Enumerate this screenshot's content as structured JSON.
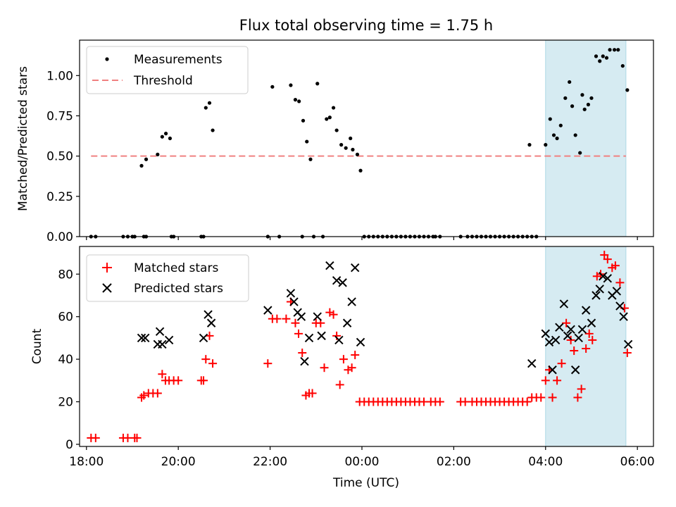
{
  "chart_data": [
    {
      "type": "scatter",
      "title": "Flux total observing time = 1.75 h",
      "ylabel": "Matched/Predicted stars",
      "xlabel": "",
      "xlim": [
        17.85,
        30.35
      ],
      "ylim": [
        0,
        1.22
      ],
      "x_ticks": [
        18,
        20,
        22,
        24,
        26,
        28,
        30
      ],
      "y_ticks": [
        0,
        0.25,
        0.5,
        0.75,
        1.0
      ],
      "y_tick_labels": [
        "0.00",
        "0.25",
        "0.50",
        "0.75",
        "1.00"
      ],
      "legend": {
        "placement": "top-left",
        "entries": [
          "Measurements",
          "Threshold"
        ]
      },
      "shaded_span": {
        "x": [
          28.0,
          29.75
        ],
        "color": "#add8e6"
      },
      "threshold": {
        "name": "Threshold",
        "y": 0.5,
        "x": [
          18.1,
          29.75
        ],
        "color": "#f08080"
      },
      "series": [
        {
          "name": "Measurements",
          "color": "#000000",
          "points": [
            [
              18.1,
              0
            ],
            [
              18.2,
              0
            ],
            [
              18.8,
              0
            ],
            [
              18.9,
              0
            ],
            [
              19.0,
              0
            ],
            [
              19.05,
              0
            ],
            [
              19.25,
              0
            ],
            [
              19.3,
              0
            ],
            [
              19.85,
              0
            ],
            [
              19.9,
              0
            ],
            [
              20.5,
              0
            ],
            [
              20.55,
              0
            ],
            [
              21.95,
              0
            ],
            [
              22.2,
              0
            ],
            [
              22.7,
              0
            ],
            [
              22.95,
              0
            ],
            [
              23.15,
              0
            ],
            [
              19.2,
              0.44
            ],
            [
              19.3,
              0.48
            ],
            [
              19.55,
              0.51
            ],
            [
              19.65,
              0.62
            ],
            [
              19.73,
              0.64
            ],
            [
              19.82,
              0.61
            ],
            [
              20.6,
              0.8
            ],
            [
              20.68,
              0.83
            ],
            [
              20.75,
              0.66
            ],
            [
              22.05,
              0.93
            ],
            [
              22.45,
              0.94
            ],
            [
              22.55,
              0.85
            ],
            [
              22.63,
              0.84
            ],
            [
              22.72,
              0.72
            ],
            [
              22.8,
              0.59
            ],
            [
              22.88,
              0.48
            ],
            [
              23.03,
              0.95
            ],
            [
              23.23,
              0.73
            ],
            [
              23.3,
              0.74
            ],
            [
              23.38,
              0.8
            ],
            [
              23.45,
              0.66
            ],
            [
              23.55,
              0.57
            ],
            [
              23.65,
              0.55
            ],
            [
              23.75,
              0.61
            ],
            [
              23.8,
              0.54
            ],
            [
              23.9,
              0.51
            ],
            [
              23.97,
              0.41
            ],
            [
              24.05,
              0
            ],
            [
              24.15,
              0
            ],
            [
              24.25,
              0
            ],
            [
              24.35,
              0
            ],
            [
              24.45,
              0
            ],
            [
              24.55,
              0
            ],
            [
              24.65,
              0
            ],
            [
              24.75,
              0
            ],
            [
              24.85,
              0
            ],
            [
              24.95,
              0
            ],
            [
              25.05,
              0
            ],
            [
              25.15,
              0
            ],
            [
              25.25,
              0
            ],
            [
              25.35,
              0
            ],
            [
              25.45,
              0
            ],
            [
              25.55,
              0
            ],
            [
              25.6,
              0
            ],
            [
              25.7,
              0
            ],
            [
              26.15,
              0
            ],
            [
              26.3,
              0
            ],
            [
              26.4,
              0
            ],
            [
              26.5,
              0
            ],
            [
              26.6,
              0
            ],
            [
              26.7,
              0
            ],
            [
              26.8,
              0
            ],
            [
              26.9,
              0
            ],
            [
              27.0,
              0
            ],
            [
              27.1,
              0
            ],
            [
              27.2,
              0
            ],
            [
              27.3,
              0
            ],
            [
              27.4,
              0
            ],
            [
              27.5,
              0
            ],
            [
              27.6,
              0
            ],
            [
              27.7,
              0
            ],
            [
              27.8,
              0
            ],
            [
              27.65,
              0.57
            ],
            [
              28.0,
              0.57
            ],
            [
              28.1,
              0.73
            ],
            [
              28.18,
              0.63
            ],
            [
              28.25,
              0.61
            ],
            [
              28.33,
              0.69
            ],
            [
              28.43,
              0.86
            ],
            [
              28.52,
              0.96
            ],
            [
              28.58,
              0.81
            ],
            [
              28.65,
              0.63
            ],
            [
              28.75,
              0.52
            ],
            [
              28.8,
              0.88
            ],
            [
              28.85,
              0.79
            ],
            [
              28.93,
              0.82
            ],
            [
              29.0,
              0.86
            ],
            [
              29.1,
              1.12
            ],
            [
              29.18,
              1.09
            ],
            [
              29.25,
              1.12
            ],
            [
              29.33,
              1.11
            ],
            [
              29.4,
              1.16
            ],
            [
              29.5,
              1.16
            ],
            [
              29.58,
              1.16
            ],
            [
              29.68,
              1.06
            ],
            [
              29.78,
              0.91
            ]
          ]
        }
      ]
    },
    {
      "type": "scatter",
      "title": "",
      "ylabel": "Count",
      "xlabel": "Time (UTC)",
      "xlim": [
        17.85,
        30.35
      ],
      "ylim": [
        -1,
        93
      ],
      "x_ticks": [
        18,
        20,
        22,
        24,
        26,
        28,
        30
      ],
      "x_tick_labels": [
        "18:00",
        "20:00",
        "22:00",
        "00:00",
        "02:00",
        "04:00",
        "06:00"
      ],
      "y_ticks": [
        0,
        20,
        40,
        60,
        80
      ],
      "y_tick_labels": [
        "0",
        "20",
        "40",
        "60",
        "80"
      ],
      "legend": {
        "placement": "top-left",
        "entries": [
          "Matched stars",
          "Predicted stars"
        ]
      },
      "shaded_span": {
        "x": [
          28.0,
          29.75
        ],
        "color": "#add8e6"
      },
      "series": [
        {
          "name": "Matched stars",
          "marker": "plus",
          "color": "#ff0000",
          "points": [
            [
              18.1,
              3
            ],
            [
              18.2,
              3
            ],
            [
              18.8,
              3
            ],
            [
              18.9,
              3
            ],
            [
              19.05,
              3
            ],
            [
              19.1,
              3
            ],
            [
              19.2,
              22
            ],
            [
              19.25,
              23
            ],
            [
              19.35,
              24
            ],
            [
              19.45,
              24
            ],
            [
              19.55,
              24
            ],
            [
              19.65,
              33
            ],
            [
              19.72,
              30
            ],
            [
              19.8,
              30
            ],
            [
              19.9,
              30
            ],
            [
              20.0,
              30
            ],
            [
              20.5,
              30
            ],
            [
              20.55,
              30
            ],
            [
              20.6,
              40
            ],
            [
              20.68,
              51
            ],
            [
              20.75,
              38
            ],
            [
              21.95,
              38
            ],
            [
              22.05,
              59
            ],
            [
              22.15,
              59
            ],
            [
              22.35,
              59
            ],
            [
              22.45,
              67
            ],
            [
              22.55,
              57
            ],
            [
              22.62,
              52
            ],
            [
              22.7,
              43
            ],
            [
              22.78,
              23
            ],
            [
              22.85,
              24
            ],
            [
              22.92,
              24
            ],
            [
              23.0,
              57
            ],
            [
              23.1,
              57
            ],
            [
              23.18,
              36
            ],
            [
              23.3,
              62
            ],
            [
              23.38,
              61
            ],
            [
              23.45,
              51
            ],
            [
              23.52,
              28
            ],
            [
              23.6,
              40
            ],
            [
              23.7,
              35
            ],
            [
              23.78,
              36
            ],
            [
              23.85,
              42
            ],
            [
              23.95,
              20
            ],
            [
              24.05,
              20
            ],
            [
              24.15,
              20
            ],
            [
              24.25,
              20
            ],
            [
              24.35,
              20
            ],
            [
              24.45,
              20
            ],
            [
              24.55,
              20
            ],
            [
              24.65,
              20
            ],
            [
              24.75,
              20
            ],
            [
              24.85,
              20
            ],
            [
              24.95,
              20
            ],
            [
              25.05,
              20
            ],
            [
              25.15,
              20
            ],
            [
              25.25,
              20
            ],
            [
              25.35,
              20
            ],
            [
              25.5,
              20
            ],
            [
              25.6,
              20
            ],
            [
              25.7,
              20
            ],
            [
              26.15,
              20
            ],
            [
              26.25,
              20
            ],
            [
              26.4,
              20
            ],
            [
              26.5,
              20
            ],
            [
              26.6,
              20
            ],
            [
              26.7,
              20
            ],
            [
              26.8,
              20
            ],
            [
              26.9,
              20
            ],
            [
              27.0,
              20
            ],
            [
              27.1,
              20
            ],
            [
              27.2,
              20
            ],
            [
              27.3,
              20
            ],
            [
              27.4,
              20
            ],
            [
              27.5,
              20
            ],
            [
              27.6,
              20
            ],
            [
              27.7,
              22
            ],
            [
              27.8,
              22
            ],
            [
              27.9,
              22
            ],
            [
              28.0,
              30
            ],
            [
              28.08,
              35
            ],
            [
              28.15,
              22
            ],
            [
              28.25,
              30
            ],
            [
              28.35,
              38
            ],
            [
              28.45,
              57
            ],
            [
              28.55,
              49
            ],
            [
              28.62,
              44
            ],
            [
              28.7,
              22
            ],
            [
              28.78,
              26
            ],
            [
              28.88,
              45
            ],
            [
              28.95,
              52
            ],
            [
              29.02,
              49
            ],
            [
              29.12,
              79
            ],
            [
              29.2,
              80
            ],
            [
              29.28,
              89
            ],
            [
              29.35,
              87
            ],
            [
              29.45,
              83
            ],
            [
              29.52,
              84
            ],
            [
              29.62,
              76
            ],
            [
              29.72,
              64
            ],
            [
              29.78,
              43
            ]
          ]
        },
        {
          "name": "Predicted stars",
          "marker": "x",
          "color": "#000000",
          "points": [
            [
              19.2,
              50
            ],
            [
              19.28,
              50
            ],
            [
              19.55,
              47
            ],
            [
              19.6,
              53
            ],
            [
              19.65,
              47
            ],
            [
              19.8,
              49
            ],
            [
              20.55,
              50
            ],
            [
              20.65,
              61
            ],
            [
              20.72,
              57
            ],
            [
              21.95,
              63
            ],
            [
              22.45,
              71
            ],
            [
              22.52,
              67
            ],
            [
              22.6,
              62
            ],
            [
              22.68,
              60
            ],
            [
              22.75,
              39
            ],
            [
              22.85,
              50
            ],
            [
              23.03,
              60
            ],
            [
              23.12,
              51
            ],
            [
              23.3,
              84
            ],
            [
              23.45,
              77
            ],
            [
              23.5,
              49
            ],
            [
              23.58,
              76
            ],
            [
              23.68,
              57
            ],
            [
              23.78,
              67
            ],
            [
              23.85,
              83
            ],
            [
              23.97,
              48
            ],
            [
              27.7,
              38
            ],
            [
              28.0,
              52
            ],
            [
              28.08,
              48
            ],
            [
              28.15,
              35
            ],
            [
              28.22,
              49
            ],
            [
              28.3,
              55
            ],
            [
              28.4,
              66
            ],
            [
              28.48,
              51
            ],
            [
              28.55,
              54
            ],
            [
              28.65,
              35
            ],
            [
              28.72,
              50
            ],
            [
              28.8,
              54
            ],
            [
              28.88,
              63
            ],
            [
              29.0,
              57
            ],
            [
              29.1,
              70
            ],
            [
              29.18,
              73
            ],
            [
              29.25,
              79
            ],
            [
              29.35,
              78
            ],
            [
              29.45,
              70
            ],
            [
              29.55,
              72
            ],
            [
              29.62,
              65
            ],
            [
              29.7,
              60
            ],
            [
              29.8,
              47
            ]
          ]
        }
      ]
    }
  ]
}
